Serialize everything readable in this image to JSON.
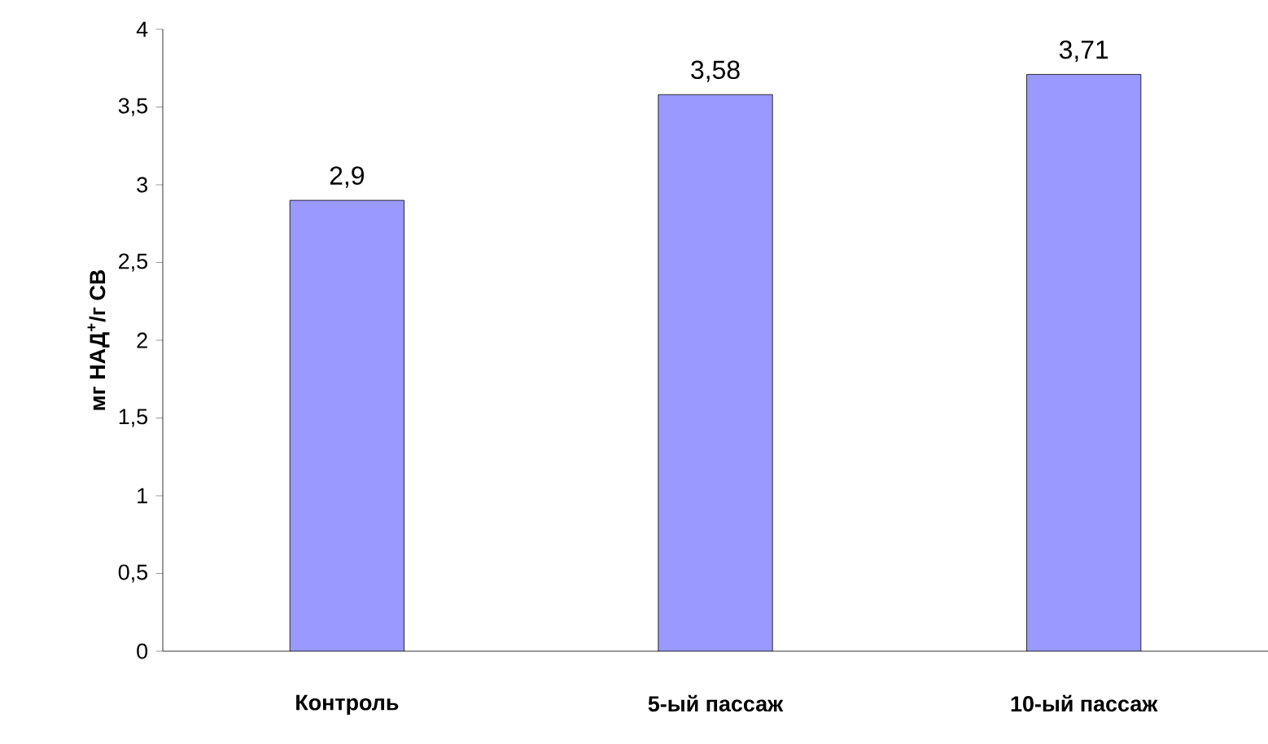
{
  "chart_data": {
    "type": "bar",
    "ylabel": "мг НАД$^{+}$/г СВ",
    "categories": [
      "Контроль",
      "5-ый пассаж",
      "10-ый пассаж"
    ],
    "values": [
      2.9,
      3.58,
      3.71
    ],
    "value_labels": [
      "2,9",
      "3,58",
      "3,71"
    ],
    "color": "#9999ff",
    "ylim": [
      0,
      4
    ],
    "yticks": [
      0,
      {
        "value": 0.5,
        "label": "0,5"
      },
      1,
      {
        "value": 1.5,
        "label": "1,5"
      },
      2,
      {
        "value": 2.5,
        "label": "2,5"
      },
      3,
      {
        "value": 3.5,
        "label": "3,5"
      },
      4
    ],
    "grid": false
  }
}
